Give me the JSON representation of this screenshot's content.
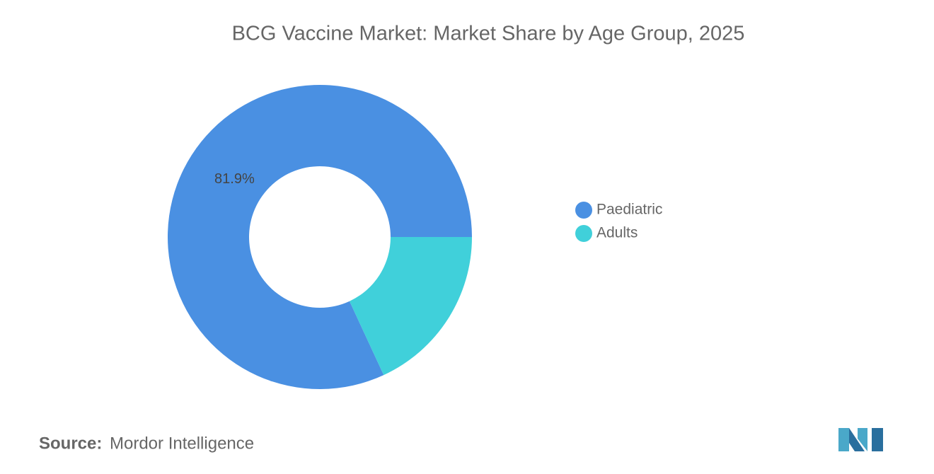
{
  "chart_data": {
    "type": "donut",
    "title": "BCG Vaccine Market: Market Share by Age Group, 2025",
    "categories": [
      "Paediatric",
      "Adults"
    ],
    "values": [
      81.9,
      18.1
    ],
    "value_labels": [
      "81.9%",
      null
    ],
    "colors": [
      "#4a90e2",
      "#40d0da"
    ],
    "legend": "right"
  },
  "footer": {
    "source_label": "Source:",
    "source": "Mordor Intelligence"
  }
}
